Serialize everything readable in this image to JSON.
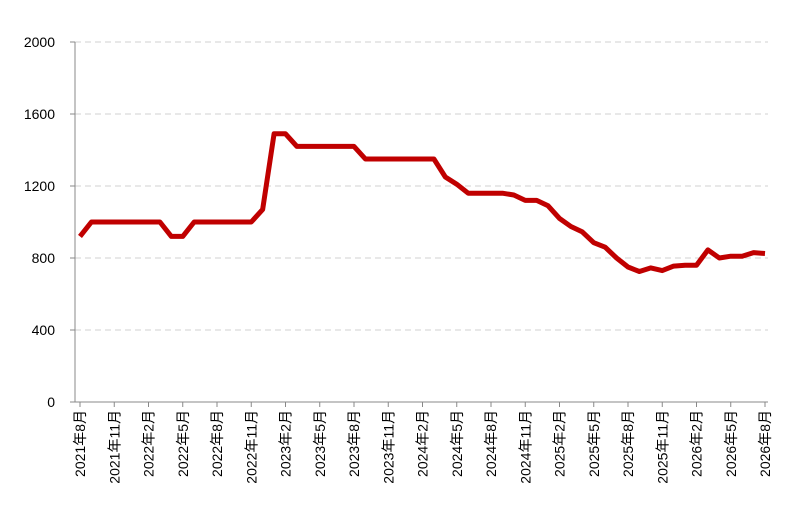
{
  "chart_data": {
    "type": "line",
    "categories": [
      "2021年8月",
      null,
      null,
      "2021年11月",
      null,
      null,
      "2022年2月",
      null,
      null,
      "2022年5月",
      null,
      null,
      "2022年8月",
      null,
      null,
      "2022年11月",
      null,
      null,
      "2023年2月",
      null,
      null,
      "2023年5月",
      null,
      null,
      "2023年8月",
      null,
      null,
      "2023年11月",
      null,
      null,
      "2024年2月",
      null,
      null,
      "2024年5月",
      null,
      null,
      "2024年8月",
      null,
      null,
      "2024年11月",
      null,
      null,
      "2025年2月",
      null,
      null,
      "2025年5月",
      null,
      null,
      "2025年8月",
      null,
      null,
      "2025年11月",
      null,
      null,
      "2026年2月",
      null,
      null,
      "2026年5月",
      null,
      null,
      "2026年8月"
    ],
    "values": [
      920,
      1000,
      1000,
      1000,
      1000,
      1000,
      1000,
      1000,
      920,
      920,
      1000,
      1000,
      1000,
      1000,
      1000,
      1000,
      1070,
      1490,
      1490,
      1420,
      1420,
      1420,
      1420,
      1420,
      1420,
      1350,
      1350,
      1350,
      1350,
      1350,
      1350,
      1350,
      1250,
      1210,
      1160,
      1160,
      1160,
      1160,
      1150,
      1120,
      1120,
      1090,
      1020,
      975,
      945,
      885,
      860,
      800,
      750,
      725,
      745,
      730,
      755,
      760,
      760,
      845,
      800,
      810,
      810,
      830,
      825
    ],
    "color": "#c00000",
    "ylim": [
      0,
      2000
    ],
    "yticks": [
      0,
      400,
      800,
      1200,
      1600,
      2000
    ],
    "grid": true
  }
}
